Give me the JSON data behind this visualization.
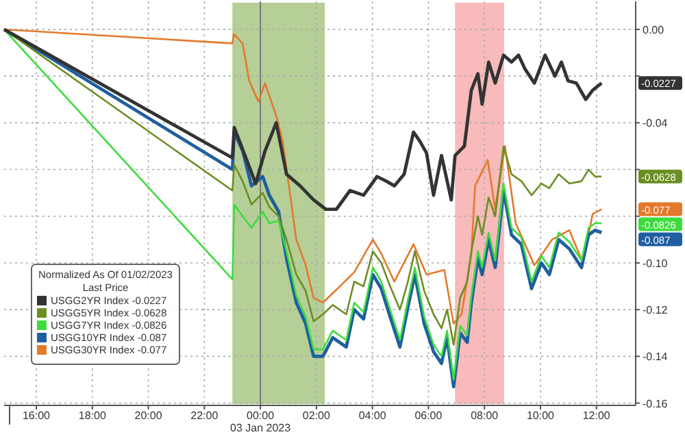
{
  "chart_data": {
    "type": "line",
    "legend_title": "Normalized As Of 01/02/2023\nLast Price",
    "legend": "bottom left",
    "grid": true,
    "xlim": [
      "2023-01-02T14:51",
      "2023-01-03T13:24"
    ],
    "ylim": [
      -0.161,
      0.012
    ],
    "xticks": [
      {
        "value": "2023-01-02T16:00",
        "label": "16:00"
      },
      {
        "value": "2023-01-02T18:00",
        "label": "18:00"
      },
      {
        "value": "2023-01-02T20:00",
        "label": "20:00"
      },
      {
        "value": "2023-01-02T22:00",
        "label": "22:00"
      },
      {
        "value": "2023-01-03T00:00",
        "label": "00:00\n03 Jan 2023"
      },
      {
        "value": "2023-01-03T02:00",
        "label": "02:00"
      },
      {
        "value": "2023-01-03T04:00",
        "label": "04:00"
      },
      {
        "value": "2023-01-03T06:00",
        "label": "06:00"
      },
      {
        "value": "2023-01-03T08:00",
        "label": "08:00"
      },
      {
        "value": "2023-01-03T10:00",
        "label": "10:00"
      },
      {
        "value": "2023-01-03T12:00",
        "label": "12:00"
      }
    ],
    "yticks": [
      {
        "value": 0,
        "label": "0.00"
      },
      {
        "value": -0.02,
        "label": null
      },
      {
        "value": -0.04,
        "label": "-0.04"
      },
      {
        "value": -0.06,
        "label": null
      },
      {
        "value": -0.08,
        "label": null
      },
      {
        "value": -0.1,
        "label": "-0.10"
      },
      {
        "value": -0.12,
        "label": "-0.12"
      },
      {
        "value": -0.14,
        "label": "-0.14"
      },
      {
        "value": -0.16,
        "label": "-0.16"
      }
    ],
    "bands": [
      {
        "axis": "x",
        "from": "2023-01-02T23:00",
        "to": "2023-01-03T02:18",
        "color": "#9cbf74"
      },
      {
        "axis": "x",
        "from": "2023-01-03T06:57",
        "to": "2023-01-03T08:42",
        "color": "#f5a3a3"
      }
    ],
    "ref_lines": [
      {
        "axis": "x",
        "value": "2023-01-03T00:00",
        "color": "#777777"
      }
    ],
    "x": [
      "2023-01-02T14:51",
      "2023-01-02T23:00",
      "2023-01-02T23:04",
      "2023-01-02T23:22",
      "2023-01-02T23:41",
      "2023-01-03T00:05",
      "2023-01-03T00:19",
      "2023-01-03T00:39",
      "2023-01-03T00:56",
      "2023-01-03T01:17",
      "2023-01-03T01:37",
      "2023-01-03T01:54",
      "2023-01-03T02:14",
      "2023-01-03T02:35",
      "2023-01-03T03:04",
      "2023-01-03T03:21",
      "2023-01-03T03:41",
      "2023-01-03T04:01",
      "2023-01-03T04:19",
      "2023-01-03T04:38",
      "2023-01-03T04:59",
      "2023-01-03T05:16",
      "2023-01-03T05:31",
      "2023-01-03T05:51",
      "2023-01-03T06:11",
      "2023-01-03T06:28",
      "2023-01-03T06:40",
      "2023-01-03T06:54",
      "2023-01-03T07:08",
      "2023-01-03T07:23",
      "2023-01-03T07:32",
      "2023-01-03T07:46",
      "2023-01-03T07:55",
      "2023-01-03T08:09",
      "2023-01-03T08:23",
      "2023-01-03T08:41",
      "2023-01-03T08:58",
      "2023-01-03T09:19",
      "2023-01-03T09:41",
      "2023-01-03T10:02",
      "2023-01-03T10:19",
      "2023-01-03T10:39",
      "2023-01-03T11:02",
      "2023-01-03T11:28",
      "2023-01-03T11:43",
      "2023-01-03T11:57",
      "2023-01-03T12:11"
    ],
    "series": [
      {
        "name": "USGG2YR Index -0.0227",
        "color": "#333333",
        "x": [
          "2023-01-02T14:51",
          "2023-01-02T23:00",
          "2023-01-02T23:04",
          "2023-01-02T23:50",
          "2023-01-03T00:10",
          "2023-01-03T00:34",
          "2023-01-03T00:56",
          "2023-01-03T01:25",
          "2023-01-03T01:54",
          "2023-01-03T02:20",
          "2023-01-03T02:43",
          "2023-01-03T03:12",
          "2023-01-03T03:41",
          "2023-01-03T04:10",
          "2023-01-03T04:30",
          "2023-01-03T04:47",
          "2023-01-03T05:08",
          "2023-01-03T05:28",
          "2023-01-03T05:42",
          "2023-01-03T05:56",
          "2023-01-03T06:11",
          "2023-01-03T06:28",
          "2023-01-03T06:49",
          "2023-01-03T06:57",
          "2023-01-03T07:17",
          "2023-01-03T07:32",
          "2023-01-03T07:46",
          "2023-01-03T07:55",
          "2023-01-03T08:09",
          "2023-01-03T08:23",
          "2023-01-03T08:41",
          "2023-01-03T08:58",
          "2023-01-03T09:13",
          "2023-01-03T09:27",
          "2023-01-03T09:47",
          "2023-01-03T10:10",
          "2023-01-03T10:31",
          "2023-01-03T10:45",
          "2023-01-03T10:59",
          "2023-01-03T11:17",
          "2023-01-03T11:37",
          "2023-01-03T11:52",
          "2023-01-03T12:11"
        ],
        "values": [
          0,
          -0.055,
          -0.042,
          -0.066,
          -0.052,
          -0.04,
          -0.062,
          -0.067,
          -0.073,
          -0.077,
          -0.077,
          -0.069,
          -0.071,
          -0.063,
          -0.065,
          -0.067,
          -0.062,
          -0.044,
          -0.048,
          -0.053,
          -0.071,
          -0.054,
          -0.073,
          -0.054,
          -0.05,
          -0.026,
          -0.019,
          -0.032,
          -0.014,
          -0.023,
          -0.011,
          -0.014,
          -0.011,
          -0.017,
          -0.023,
          -0.011,
          -0.02,
          -0.014,
          -0.022,
          -0.023,
          -0.03,
          -0.026,
          -0.023
        ]
      },
      {
        "name": "USGG5YR Index -0.0628",
        "color": "#6b8e23",
        "values": [
          0,
          -0.069,
          -0.058,
          -0.065,
          -0.075,
          -0.07,
          -0.076,
          -0.08,
          -0.09,
          -0.105,
          -0.112,
          -0.125,
          -0.122,
          -0.118,
          -0.122,
          -0.108,
          -0.11,
          -0.095,
          -0.1,
          -0.11,
          -0.12,
          -0.108,
          -0.095,
          -0.112,
          -0.122,
          -0.128,
          -0.12,
          -0.135,
          -0.115,
          -0.108,
          -0.095,
          -0.08,
          -0.088,
          -0.072,
          -0.08,
          -0.05,
          -0.062,
          -0.065,
          -0.071,
          -0.066,
          -0.068,
          -0.062,
          -0.066,
          -0.065,
          -0.06,
          -0.063,
          -0.063
        ]
      },
      {
        "name": "USGG7YR Index -0.0826",
        "color": "#3ddc3d",
        "values": [
          0,
          -0.107,
          -0.075,
          -0.08,
          -0.085,
          -0.078,
          -0.083,
          -0.082,
          -0.095,
          -0.114,
          -0.123,
          -0.137,
          -0.137,
          -0.129,
          -0.133,
          -0.117,
          -0.121,
          -0.102,
          -0.108,
          -0.12,
          -0.133,
          -0.116,
          -0.102,
          -0.123,
          -0.135,
          -0.14,
          -0.129,
          -0.15,
          -0.127,
          -0.131,
          -0.114,
          -0.095,
          -0.102,
          -0.087,
          -0.099,
          -0.066,
          -0.085,
          -0.089,
          -0.108,
          -0.097,
          -0.102,
          -0.087,
          -0.091,
          -0.099,
          -0.085,
          -0.083,
          -0.083
        ]
      },
      {
        "name": "USGG10YR Index -0.087",
        "color": "#1f5f9f",
        "values": [
          0,
          -0.06,
          -0.044,
          -0.052,
          -0.067,
          -0.063,
          -0.071,
          -0.078,
          -0.098,
          -0.117,
          -0.126,
          -0.14,
          -0.14,
          -0.132,
          -0.136,
          -0.12,
          -0.124,
          -0.105,
          -0.111,
          -0.123,
          -0.136,
          -0.119,
          -0.105,
          -0.126,
          -0.138,
          -0.143,
          -0.132,
          -0.153,
          -0.13,
          -0.134,
          -0.117,
          -0.098,
          -0.105,
          -0.09,
          -0.102,
          -0.069,
          -0.088,
          -0.092,
          -0.111,
          -0.1,
          -0.105,
          -0.09,
          -0.094,
          -0.102,
          -0.088,
          -0.086,
          -0.087
        ]
      },
      {
        "name": "USGG30YR Index -0.077",
        "color": "#e4792b",
        "x": [
          "2023-01-02T14:51",
          "2023-01-02T23:00",
          "2023-01-02T23:03",
          "2023-01-02T23:22",
          "2023-01-02T23:36",
          "2023-01-02T23:56",
          "2023-01-03T00:10",
          "2023-01-03T00:34",
          "2023-01-03T00:48",
          "2023-01-03T01:08",
          "2023-01-03T01:17",
          "2023-01-03T01:37",
          "2023-01-03T01:54",
          "2023-01-03T02:14",
          "2023-01-03T02:35",
          "2023-01-03T03:21",
          "2023-01-03T04:01",
          "2023-01-03T04:19",
          "2023-01-03T04:47",
          "2023-01-03T05:28",
          "2023-01-03T05:56",
          "2023-01-03T06:34",
          "2023-01-03T06:54",
          "2023-01-03T07:11",
          "2023-01-03T07:32",
          "2023-01-03T07:40",
          "2023-01-03T08:07",
          "2023-01-03T08:23",
          "2023-01-03T08:44",
          "2023-01-03T09:07",
          "2023-01-03T09:47",
          "2023-01-03T10:25",
          "2023-01-03T11:02",
          "2023-01-03T11:31",
          "2023-01-03T11:52",
          "2023-01-03T12:11"
        ],
        "values": [
          0,
          -0.006,
          -0.002,
          -0.006,
          -0.022,
          -0.031,
          -0.023,
          -0.037,
          -0.048,
          -0.077,
          -0.09,
          -0.101,
          -0.115,
          -0.117,
          -0.113,
          -0.104,
          -0.09,
          -0.096,
          -0.108,
          -0.092,
          -0.105,
          -0.103,
          -0.126,
          -0.122,
          -0.096,
          -0.067,
          -0.056,
          -0.077,
          -0.05,
          -0.083,
          -0.101,
          -0.09,
          -0.086,
          -0.1,
          -0.079,
          -0.077
        ]
      }
    ],
    "annotations": [
      "-0.0227",
      "-0.0628",
      "-0.0826",
      "-0.087",
      "-0.077"
    ]
  }
}
